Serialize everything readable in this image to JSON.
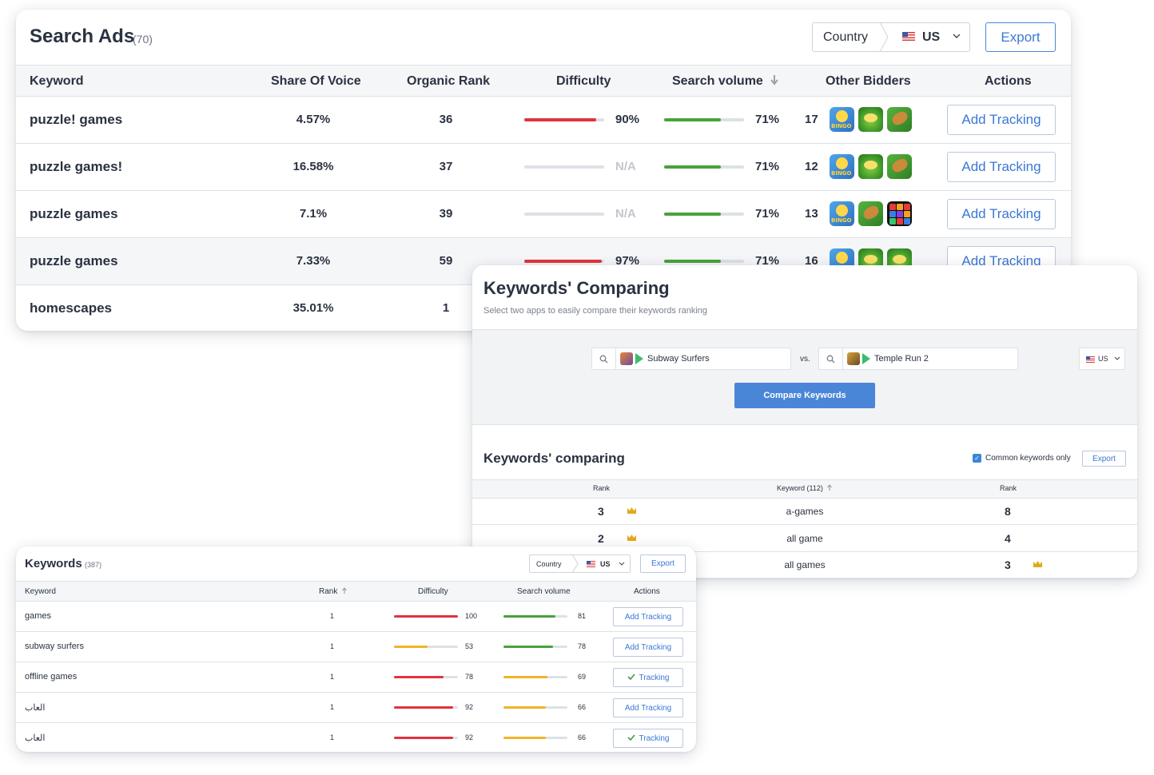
{
  "search_ads": {
    "title": "Search Ads",
    "count": "(70)",
    "country_label": "Country",
    "country_value": "US",
    "export_label": "Export",
    "columns": {
      "keyword": "Keyword",
      "share_of_voice": "Share Of Voice",
      "organic_rank": "Organic Rank",
      "difficulty": "Difficulty",
      "search_volume": "Search volume",
      "search_volume_sort_icon": "arrow-down-icon",
      "other_bidders": "Other Bidders",
      "actions": "Actions"
    },
    "rows": [
      {
        "keyword": "puzzle! games",
        "share_of_voice": "4.57%",
        "organic_rank": "36",
        "difficulty": 90,
        "difficulty_text": "90%",
        "volume": 71,
        "volume_text": "71%",
        "bidders": "17",
        "bidder_icons": [
          "bingo-app-icon",
          "frog-app-icon",
          "jungle-app-icon"
        ],
        "action": "Add Tracking"
      },
      {
        "keyword": "puzzle games!",
        "share_of_voice": "16.58%",
        "organic_rank": "37",
        "difficulty": 0,
        "difficulty_text": "N/A",
        "volume": 71,
        "volume_text": "71%",
        "bidders": "12",
        "bidder_icons": [
          "bingo-app-icon",
          "frog-app-icon",
          "jungle-app-icon"
        ],
        "action": "Add Tracking"
      },
      {
        "keyword": "puzzle games",
        "share_of_voice": "7.1%",
        "organic_rank": "39",
        "difficulty": 0,
        "difficulty_text": "N/A",
        "volume": 71,
        "volume_text": "71%",
        "bidders": "13",
        "bidder_icons": [
          "bingo-app-icon",
          "jungle-app-icon",
          "grid-app-icon"
        ],
        "action": "Add Tracking"
      },
      {
        "keyword": "puzzle games",
        "share_of_voice": "7.33%",
        "organic_rank": "59",
        "difficulty": 97,
        "difficulty_text": "97%",
        "volume": 71,
        "volume_text": "71%",
        "bidders": "16",
        "bidder_icons": [
          "bingo-app-icon",
          "frog-app-icon",
          "frog-app-icon"
        ],
        "action": "Add Tracking"
      },
      {
        "keyword": "homescapes",
        "share_of_voice": "35.01%",
        "organic_rank": "1"
      }
    ]
  },
  "comparing": {
    "title": "Keywords' Comparing",
    "subtitle": "Select two apps to easily compare their keywords ranking",
    "app1": "Subway Surfers",
    "vs": "vs.",
    "app2": "Temple Run 2",
    "country_value": "US",
    "compare_button": "Compare Keywords",
    "section_title": "Keywords' comparing",
    "common_only_label": "Common keywords only",
    "common_only_checked": true,
    "export_label": "Export",
    "columns": {
      "rank_left": "Rank",
      "keyword": "Keyword (112)",
      "keyword_sort_icon": "arrow-up-icon",
      "rank_right": "Rank"
    },
    "rows": [
      {
        "rank_left": "3",
        "keyword": "a-games",
        "rank_right": "8",
        "winner": "left"
      },
      {
        "rank_left": "2",
        "keyword": "all game",
        "rank_right": "4",
        "winner": "left"
      },
      {
        "rank_left": "",
        "keyword": "all games",
        "rank_right": "3",
        "winner": "right"
      }
    ]
  },
  "keywords": {
    "title": "Keywords",
    "count": "(387)",
    "country_label": "Country",
    "country_value": "US",
    "export_label": "Export",
    "columns": {
      "keyword": "Keyword",
      "rank": "Rank",
      "rank_sort_icon": "arrow-up-icon",
      "difficulty": "Difficulty",
      "search_volume": "Search volume",
      "actions": "Actions"
    },
    "rows": [
      {
        "keyword": "games",
        "rank": "1",
        "difficulty": 100,
        "difficulty_text": "100",
        "difficulty_color": "#e0343c",
        "volume": 81,
        "volume_text": "81",
        "volume_color": "#48a23a",
        "action": "Add Tracking",
        "tracking": false
      },
      {
        "keyword": "subway surfers",
        "rank": "1",
        "difficulty": 53,
        "difficulty_text": "53",
        "difficulty_color": "#f0b429",
        "volume": 78,
        "volume_text": "78",
        "volume_color": "#48a23a",
        "action": "Add Tracking",
        "tracking": false
      },
      {
        "keyword": "offline games",
        "rank": "1",
        "difficulty": 78,
        "difficulty_text": "78",
        "difficulty_color": "#e0343c",
        "volume": 69,
        "volume_text": "69",
        "volume_color": "#f0b429",
        "action": "Tracking",
        "tracking": true
      },
      {
        "keyword": "العاب",
        "rank": "1",
        "difficulty": 92,
        "difficulty_text": "92",
        "difficulty_color": "#e0343c",
        "volume": 66,
        "volume_text": "66",
        "volume_color": "#f0b429",
        "action": "Add Tracking",
        "tracking": false
      },
      {
        "keyword": "العاب",
        "rank": "1",
        "difficulty": 92,
        "difficulty_text": "92",
        "difficulty_color": "#e0343c",
        "volume": 66,
        "volume_text": "66",
        "volume_color": "#f0b429",
        "action": "Tracking",
        "tracking": true
      }
    ]
  },
  "colors": {
    "accent": "#3a78d4",
    "difficulty_high": "#e0343c",
    "volume_good": "#48a23a",
    "medium": "#f0b429",
    "crown": "#e2a91b"
  }
}
